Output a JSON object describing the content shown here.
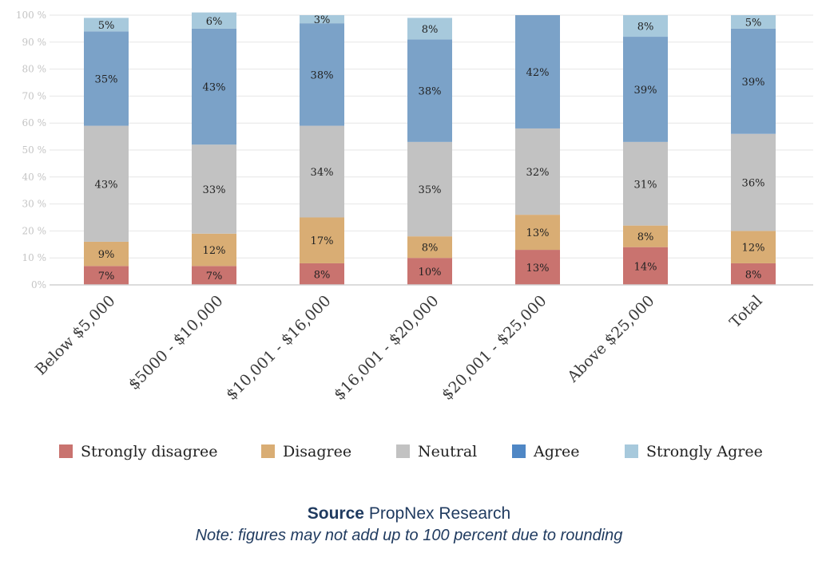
{
  "chart_data": {
    "type": "bar",
    "stacked": true,
    "categories": [
      "Below $5,000",
      "$5000 - $10,000",
      "$10,001 - $16,000",
      "$16,001 - $20,000",
      "$20,001 - $25,000",
      "Above $25,000",
      "Total"
    ],
    "series": [
      {
        "name": "Strongly disagree",
        "color": "#c9736f",
        "values": [
          7,
          7,
          8,
          10,
          13,
          14,
          8
        ],
        "labels": [
          "7%",
          "7%",
          "8%",
          "10%",
          "13%",
          "14%",
          "8%"
        ]
      },
      {
        "name": "Disagree",
        "color": "#d9ad74",
        "values": [
          9,
          12,
          17,
          8,
          13,
          8,
          12
        ],
        "labels": [
          "9%",
          "12%",
          "17%",
          "8%",
          "13%",
          "8%",
          "12%"
        ]
      },
      {
        "name": "Neutral",
        "color": "#c2c2c2",
        "values": [
          43,
          33,
          34,
          35,
          32,
          31,
          36
        ],
        "labels": [
          "43%",
          "33%",
          "34%",
          "35%",
          "32%",
          "31%",
          "36%"
        ]
      },
      {
        "name": "Agree",
        "color": "#7ba2c8",
        "values": [
          35,
          43,
          38,
          38,
          42,
          39,
          39
        ],
        "labels": [
          "35%",
          "43%",
          "38%",
          "38%",
          "42%",
          "39%",
          "39%"
        ]
      },
      {
        "name": "Strongly Agree",
        "color": "#a7c9dc",
        "values": [
          5,
          6,
          3,
          8,
          0,
          8,
          5
        ],
        "labels": [
          "5%",
          "6%",
          "3%",
          "8%",
          "",
          "8%",
          "5%"
        ]
      }
    ],
    "legend_swatch_colors": [
      "#c9736f",
      "#d9ad74",
      "#c2c2c2",
      "#4f87c5",
      "#a7c9dc"
    ],
    "ylim": [
      0,
      100
    ],
    "yticks": [
      0,
      10,
      20,
      30,
      40,
      50,
      60,
      70,
      80,
      90,
      100
    ],
    "ytick_labels": [
      "0%",
      "10 %",
      "20 %",
      "30 %",
      "40 %",
      "50 %",
      "60 %",
      "70 %",
      "80 %",
      "90 %",
      "100 %"
    ],
    "grid": true,
    "legend_position": "bottom"
  },
  "source": {
    "label": "Source",
    "text": "PropNex Research",
    "note": "Note: figures may not add up to 100 percent due to rounding"
  }
}
